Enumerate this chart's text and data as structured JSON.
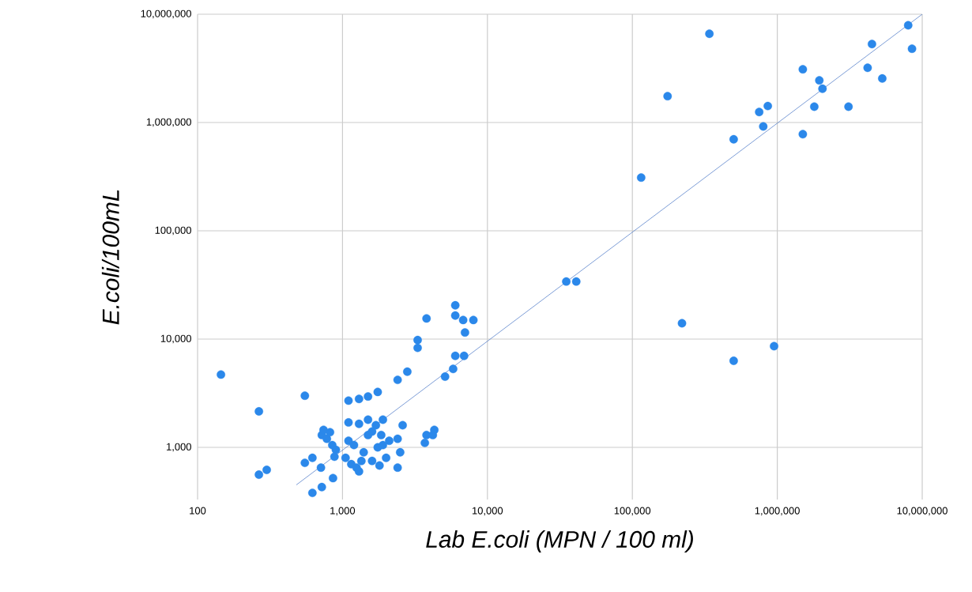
{
  "chart_data": {
    "type": "scatter",
    "xlabel": "Lab E.coli (MPN / 100 ml)",
    "ylabel": "E.coli/100mL",
    "log": "xy",
    "grid": true,
    "marker": "circle",
    "xlim": [
      100,
      10000000
    ],
    "ylim": [
      330,
      10000000
    ],
    "xticks": [
      100,
      {
        "value": 1000,
        "label": "1,000"
      },
      {
        "value": 10000,
        "label": "10,000"
      },
      {
        "value": 100000,
        "label": "100,000"
      },
      {
        "value": 1000000,
        "label": "1,000,000"
      },
      {
        "value": 10000000,
        "label": "10,000,000"
      }
    ],
    "yticks": [
      {
        "value": 1000,
        "label": "1,000"
      },
      {
        "value": 10000,
        "label": "10,000"
      },
      {
        "value": 100000,
        "label": "100,000"
      },
      {
        "value": 1000000,
        "label": "1,000,000"
      },
      {
        "value": 10000000,
        "label": "10,000,000"
      }
    ],
    "series": [
      {
        "color": "#2b88ea",
        "x": [
          340000,
          8000000,
          4500000,
          8500000,
          1500000,
          1950000,
          4200000,
          5300000,
          2050000,
          175000,
          750000,
          860000,
          1800000,
          3100000,
          800000,
          500000,
          1500000,
          115000,
          35000,
          41000,
          220000,
          500000,
          950000,
          145,
          265,
          265,
          300,
          550,
          550,
          620,
          620,
          710,
          720,
          720,
          740,
          780,
          820,
          850,
          860,
          880,
          900,
          1100,
          1300,
          1500,
          1750,
          1100,
          1300,
          1500,
          1700,
          1900,
          1100,
          1050,
          1150,
          1250,
          1300,
          1350,
          1500,
          1600,
          1750,
          1800,
          1850,
          2000,
          2100,
          2400,
          2400,
          2500,
          2600,
          2400,
          2800,
          3300,
          3300,
          3800,
          3700,
          3800,
          4200,
          4300,
          5100,
          5800,
          6000,
          6000,
          6000,
          6800,
          7000,
          6900,
          8000,
          1200,
          1400,
          1600,
          1900
        ],
        "values": [
          6600000,
          7900000,
          5300000,
          4800000,
          3100000,
          2450000,
          3200000,
          2550000,
          2050000,
          1750000,
          1250000,
          1420000,
          1400000,
          1400000,
          920000,
          700000,
          780000,
          310000,
          34000,
          34000,
          14000,
          6300,
          8600,
          4700,
          2150,
          560,
          620,
          3000,
          720,
          800,
          380,
          650,
          430,
          1300,
          1450,
          1200,
          1380,
          1050,
          520,
          820,
          950,
          2700,
          2800,
          2950,
          3250,
          1700,
          1650,
          1800,
          1600,
          1800,
          1150,
          800,
          700,
          650,
          600,
          750,
          1300,
          1400,
          1000,
          680,
          1300,
          800,
          1150,
          1200,
          650,
          900,
          1600,
          4200,
          5000,
          9800,
          8300,
          15500,
          1100,
          1300,
          1300,
          1450,
          4500,
          5300,
          7000,
          20500,
          16500,
          15000,
          11500,
          7000,
          15000,
          1050,
          900,
          750,
          1050
        ]
      },
      {
        "type": "line",
        "color": "#4472c4",
        "marker": "none",
        "x": [
          480,
          10000000
        ],
        "values": [
          450,
          10000000
        ]
      }
    ]
  }
}
